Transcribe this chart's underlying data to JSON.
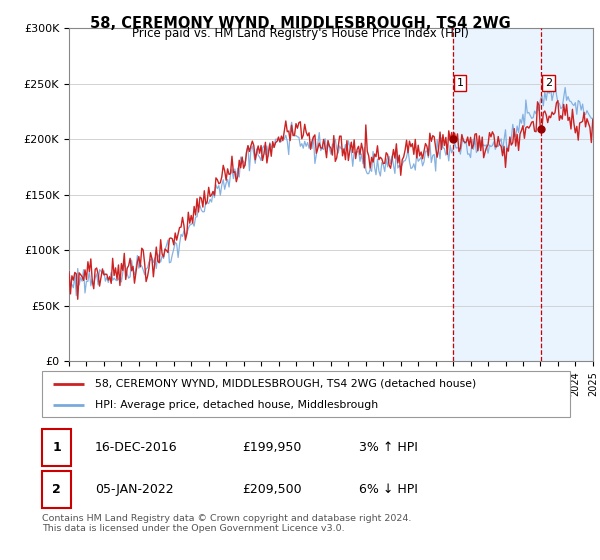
{
  "title": "58, CEREMONY WYND, MIDDLESBROUGH, TS4 2WG",
  "subtitle": "Price paid vs. HM Land Registry's House Price Index (HPI)",
  "legend_line1": "58, CEREMONY WYND, MIDDLESBROUGH, TS4 2WG (detached house)",
  "legend_line2": "HPI: Average price, detached house, Middlesbrough",
  "annotation1_date": "16-DEC-2016",
  "annotation1_price": "£199,950",
  "annotation1_hpi": "3% ↑ HPI",
  "annotation2_date": "05-JAN-2022",
  "annotation2_price": "£209,500",
  "annotation2_hpi": "6% ↓ HPI",
  "footer": "Contains HM Land Registry data © Crown copyright and database right 2024.\nThis data is licensed under the Open Government Licence v3.0.",
  "hpi_color": "#7aaadd",
  "price_color": "#cc2222",
  "shade_color": "#ddeeff",
  "annotation_color": "#cc0000",
  "marker1_x": 2017.0,
  "marker2_x": 2022.05,
  "marker1_y": 199950,
  "marker2_y": 209500,
  "xmin": 1995,
  "xmax": 2025,
  "ymin": 0,
  "ymax": 300000,
  "yticks": [
    0,
    50000,
    100000,
    150000,
    200000,
    250000,
    300000
  ],
  "ytick_labels": [
    "£0",
    "£50K",
    "£100K",
    "£150K",
    "£200K",
    "£250K",
    "£300K"
  ]
}
